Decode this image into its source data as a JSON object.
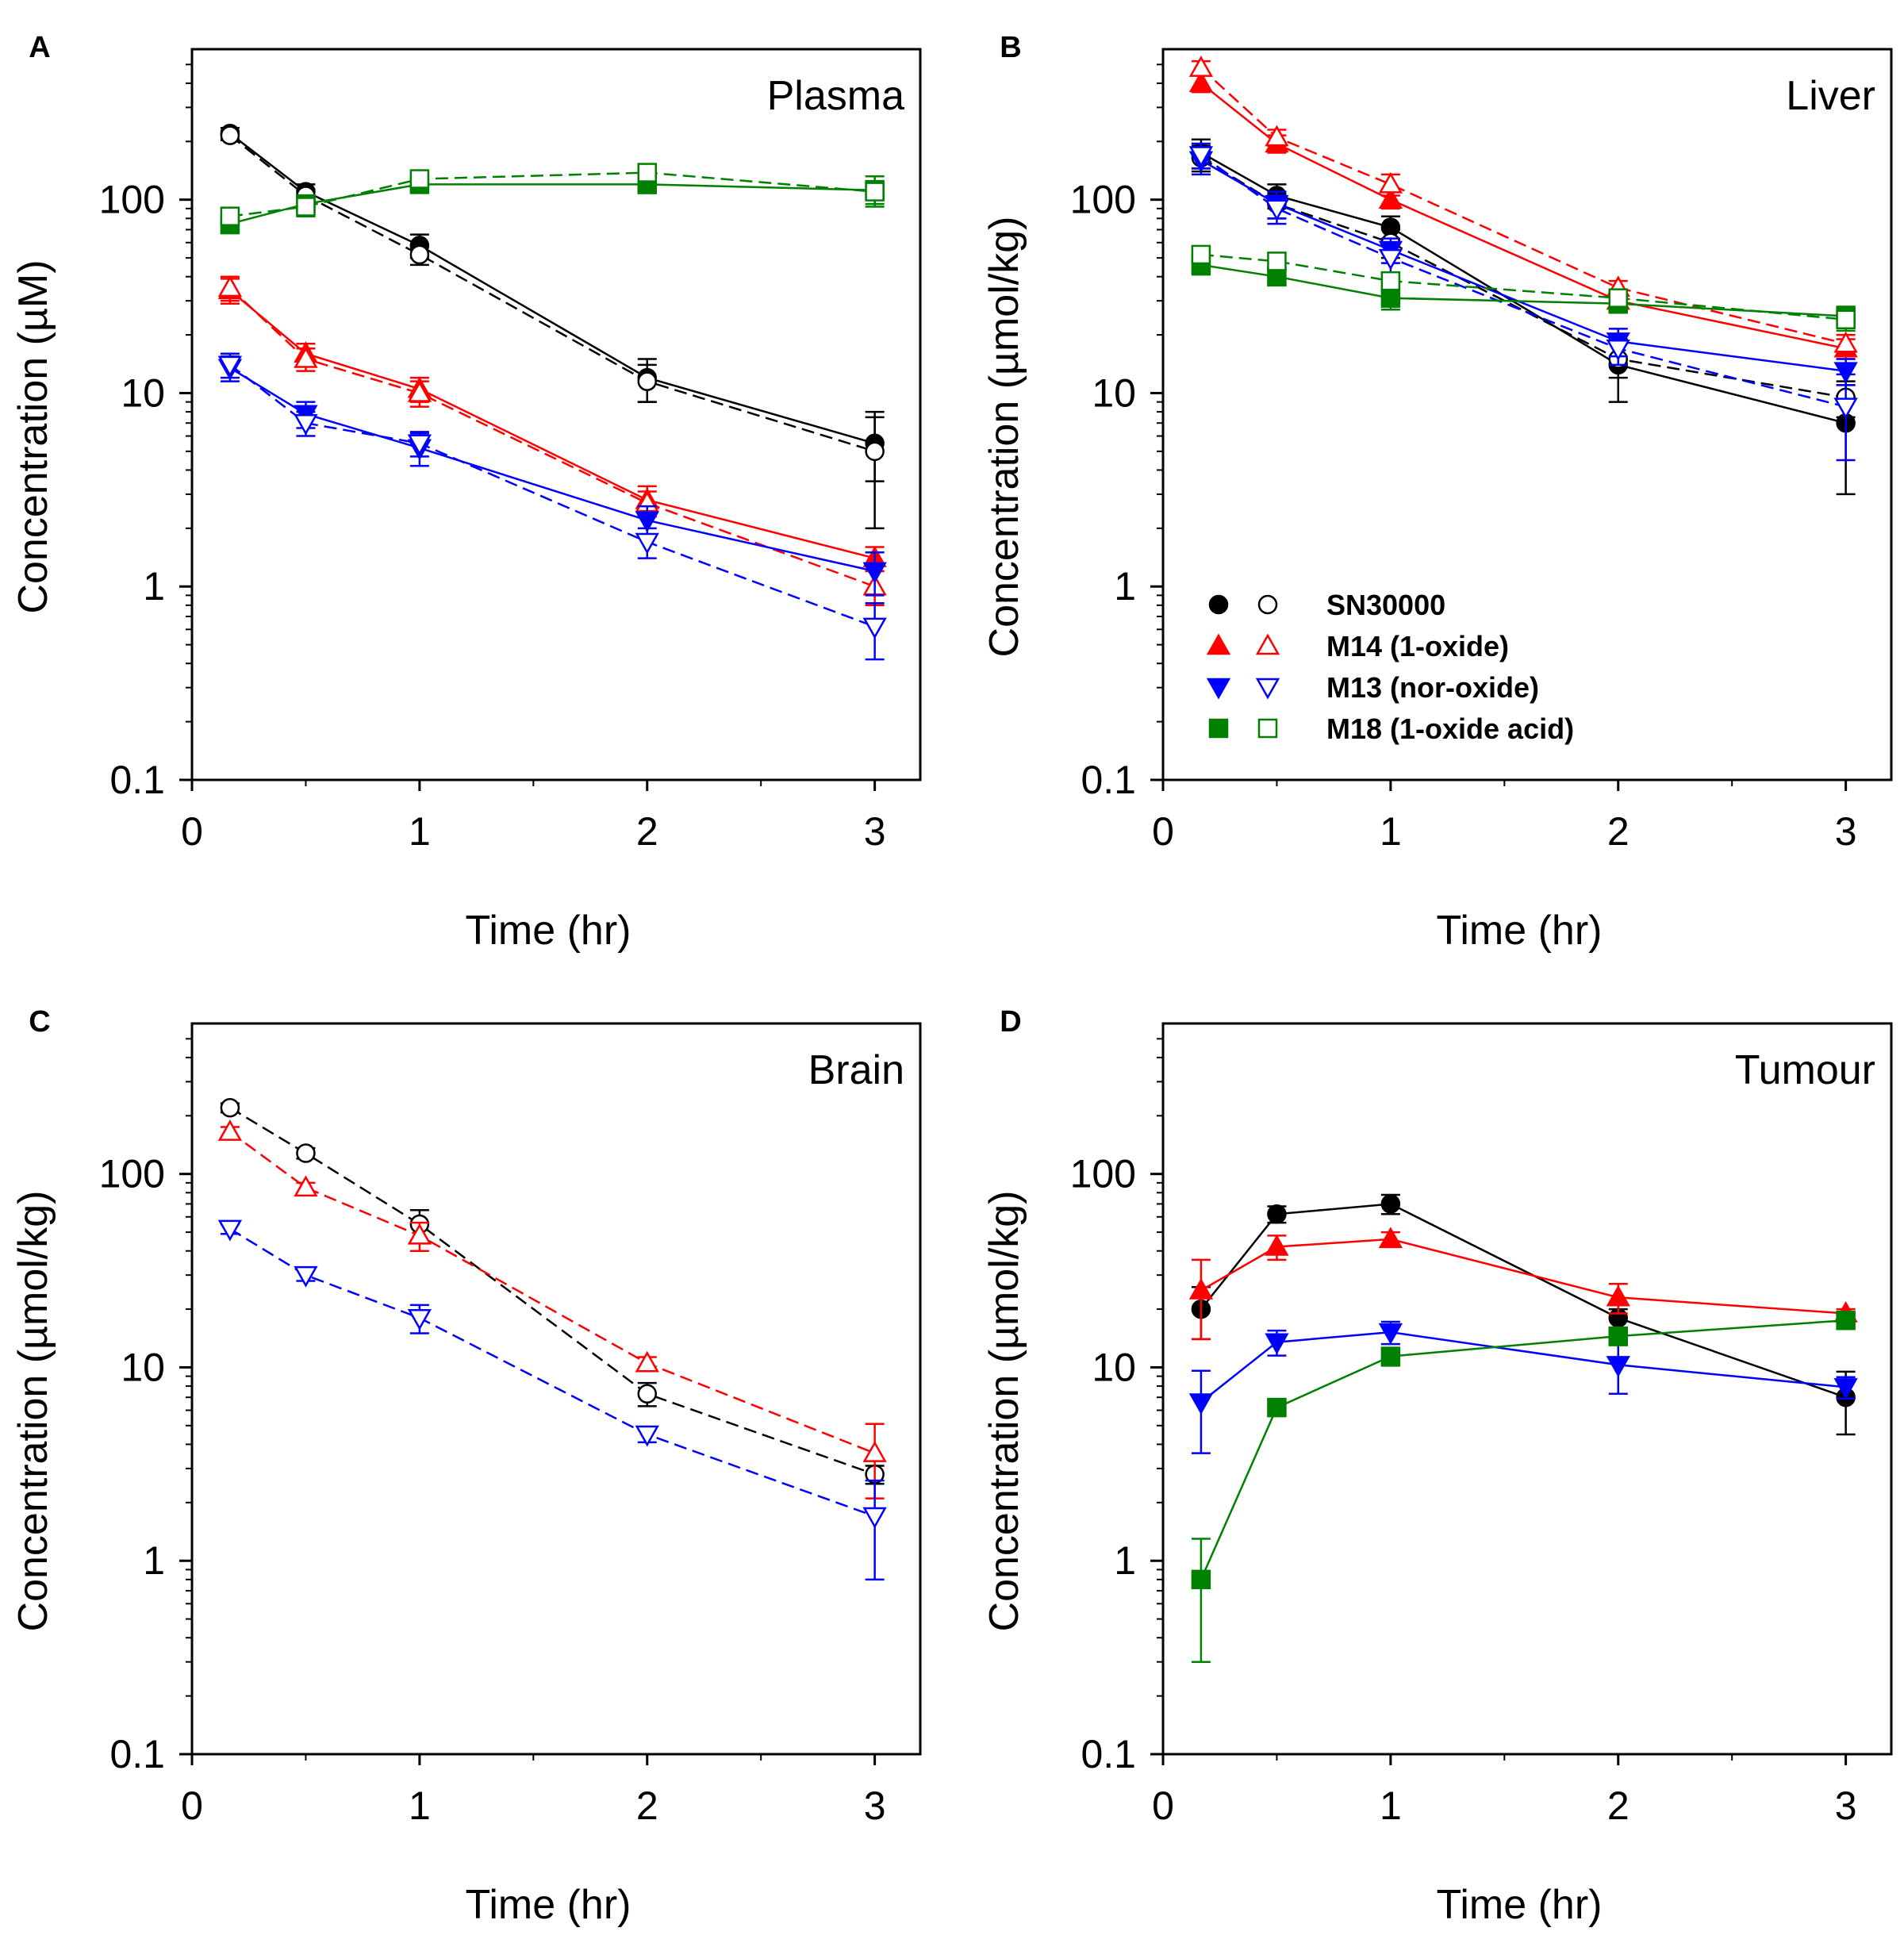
{
  "chart_data": [
    {
      "panel_label": "A",
      "title": "Plasma",
      "type": "line",
      "xlabel": "Time (hr)",
      "ylabel": "Concentration (µM)",
      "xlim": [
        0,
        3.2
      ],
      "ylim": [
        0.1,
        600
      ],
      "yscale": "log",
      "xticks": [
        "0",
        "1",
        "2",
        "3"
      ],
      "yticks": [
        "0.1",
        "1",
        "10",
        "100"
      ],
      "series": [
        {
          "name": "SN30000",
          "color": "#000000",
          "marker": "circle",
          "filled": true,
          "dashed": false,
          "x": [
            0.167,
            0.5,
            1,
            2,
            3
          ],
          "y": [
            220,
            110,
            58,
            12,
            5.5
          ],
          "err": [
            15,
            10,
            8,
            3,
            2
          ]
        },
        {
          "name": "SN30000",
          "color": "#000000",
          "marker": "circle",
          "filled": false,
          "dashed": true,
          "x": [
            0.167,
            0.5,
            1,
            2,
            3
          ],
          "y": [
            215,
            105,
            52,
            11.5,
            5.0
          ],
          "err": [
            12,
            8,
            6,
            2.5,
            3
          ]
        },
        {
          "name": "M14 (1-oxide)",
          "color": "#ff0000",
          "marker": "triangle-up",
          "filled": true,
          "dashed": false,
          "x": [
            0.167,
            0.5,
            1,
            2,
            3
          ],
          "y": [
            34,
            16,
            10.5,
            2.8,
            1.4
          ],
          "err": [
            5,
            2,
            1.5,
            0.5,
            0.2
          ]
        },
        {
          "name": "M14 (1-oxide)",
          "color": "#ff0000",
          "marker": "triangle-up",
          "filled": false,
          "dashed": true,
          "x": [
            0.167,
            0.5,
            1,
            2,
            3
          ],
          "y": [
            35,
            15,
            10,
            2.7,
            1.0
          ],
          "err": [
            5,
            2,
            1.5,
            0.4,
            0.2
          ]
        },
        {
          "name": "M13 (nor-oxide)",
          "color": "#0000ff",
          "marker": "triangle-down",
          "filled": true,
          "dashed": false,
          "x": [
            0.167,
            0.5,
            1,
            2,
            3
          ],
          "y": [
            13.5,
            7.8,
            5.2,
            2.2,
            1.2
          ],
          "err": [
            2,
            1.2,
            1,
            0.4,
            0.3
          ]
        },
        {
          "name": "M13 (nor-oxide)",
          "color": "#0000ff",
          "marker": "triangle-down",
          "filled": false,
          "dashed": true,
          "x": [
            0.167,
            0.5,
            1,
            2,
            3
          ],
          "y": [
            14,
            7,
            5.5,
            1.7,
            0.62
          ],
          "err": [
            2,
            1,
            0.8,
            0.3,
            0.2
          ]
        },
        {
          "name": "M18 (1-oxide acid)",
          "color": "#008000",
          "marker": "square",
          "filled": true,
          "dashed": false,
          "x": [
            0.167,
            0.5,
            1,
            2,
            3
          ],
          "y": [
            75,
            95,
            120,
            120,
            112
          ],
          "err": [
            8,
            10,
            10,
            12,
            20
          ]
        },
        {
          "name": "M18 (1-oxide acid)",
          "color": "#008000",
          "marker": "square",
          "filled": false,
          "dashed": true,
          "x": [
            0.167,
            0.5,
            1,
            2,
            3
          ],
          "y": [
            82,
            92,
            128,
            138,
            110
          ],
          "err": [
            8,
            10,
            10,
            12,
            15
          ]
        }
      ]
    },
    {
      "panel_label": "B",
      "title": "Liver",
      "type": "line",
      "xlabel": "Time (hr)",
      "ylabel": "Concentration (µmol/kg)",
      "xlim": [
        0,
        3.2
      ],
      "ylim": [
        0.1,
        600
      ],
      "yscale": "log",
      "xticks": [
        "0",
        "1",
        "2",
        "3"
      ],
      "yticks": [
        "0.1",
        "1",
        "10",
        "100"
      ],
      "series": [
        {
          "name": "SN30000",
          "color": "#000000",
          "marker": "circle",
          "filled": true,
          "dashed": false,
          "x": [
            0.167,
            0.5,
            1,
            2,
            3
          ],
          "y": [
            175,
            105,
            72,
            14,
            7
          ],
          "err": [
            30,
            15,
            10,
            5,
            4
          ]
        },
        {
          "name": "SN30000",
          "color": "#000000",
          "marker": "circle",
          "filled": false,
          "dashed": true,
          "x": [
            0.167,
            0.5,
            1,
            2,
            3
          ],
          "y": [
            165,
            95,
            60,
            15,
            9.5
          ],
          "err": [
            25,
            15,
            10,
            3,
            2
          ]
        },
        {
          "name": "M14 (1-oxide)",
          "color": "#ff0000",
          "marker": "triangle-up",
          "filled": true,
          "dashed": false,
          "x": [
            0.167,
            0.5,
            1,
            2,
            3
          ],
          "y": [
            400,
            195,
            100,
            30,
            17
          ],
          "err": [
            40,
            20,
            10,
            3,
            2
          ]
        },
        {
          "name": "M14 (1-oxide)",
          "color": "#ff0000",
          "marker": "triangle-up",
          "filled": false,
          "dashed": true,
          "x": [
            0.167,
            0.5,
            1,
            2,
            3
          ],
          "y": [
            480,
            210,
            120,
            35,
            18
          ],
          "err": [
            40,
            20,
            15,
            3,
            2
          ]
        },
        {
          "name": "M13 (nor-oxide)",
          "color": "#0000ff",
          "marker": "triangle-down",
          "filled": true,
          "dashed": false,
          "x": [
            0.167,
            0.5,
            1,
            2,
            3
          ],
          "y": [
            160,
            95,
            55,
            18.5,
            13
          ],
          "err": [
            25,
            15,
            8,
            3,
            2
          ]
        },
        {
          "name": "M13 (nor-oxide)",
          "color": "#0000ff",
          "marker": "triangle-down",
          "filled": false,
          "dashed": true,
          "x": [
            0.167,
            0.5,
            1,
            2,
            3
          ],
          "y": [
            170,
            90,
            50,
            17,
            8.5
          ],
          "err": [
            25,
            15,
            8,
            3,
            4
          ]
        },
        {
          "name": "M18 (1-oxide acid)",
          "color": "#008000",
          "marker": "square",
          "filled": true,
          "dashed": false,
          "x": [
            0.167,
            0.5,
            1,
            2,
            3
          ],
          "y": [
            46,
            40,
            31,
            29,
            25
          ],
          "err": [
            5,
            4,
            4,
            3,
            3
          ]
        },
        {
          "name": "M18 (1-oxide acid)",
          "color": "#008000",
          "marker": "square",
          "filled": false,
          "dashed": true,
          "x": [
            0.167,
            0.5,
            1,
            2,
            3
          ],
          "y": [
            52,
            48,
            38,
            31,
            24
          ],
          "err": [
            5,
            5,
            4,
            3,
            3
          ]
        }
      ],
      "legend": {
        "position": "lower-left",
        "entries": [
          "SN30000",
          "M14 (1-oxide)",
          "M13 (nor-oxide)",
          "M18 (1-oxide acid)"
        ]
      }
    },
    {
      "panel_label": "C",
      "title": "Brain",
      "type": "line",
      "xlabel": "Time (hr)",
      "ylabel": "Concentration (µmol/kg)",
      "xlim": [
        0,
        3.2
      ],
      "ylim": [
        0.1,
        600
      ],
      "yscale": "log",
      "xticks": [
        "0",
        "1",
        "2",
        "3"
      ],
      "yticks": [
        "0.1",
        "1",
        "10",
        "100"
      ],
      "series": [
        {
          "name": "SN30000",
          "color": "#000000",
          "marker": "circle",
          "filled": false,
          "dashed": true,
          "x": [
            0.167,
            0.5,
            1,
            2,
            3
          ],
          "y": [
            220,
            128,
            55,
            7.3,
            2.8
          ],
          "err": [
            12,
            8,
            10,
            1,
            0.3
          ]
        },
        {
          "name": "M14 (1-oxide)",
          "color": "#ff0000",
          "marker": "triangle-up",
          "filled": false,
          "dashed": true,
          "x": [
            0.167,
            0.5,
            1,
            2,
            3
          ],
          "y": [
            165,
            85,
            48,
            10.5,
            3.6
          ],
          "err": [
            10,
            5,
            8,
            0.8,
            1.5
          ]
        },
        {
          "name": "M13 (nor-oxide)",
          "color": "#0000ff",
          "marker": "triangle-down",
          "filled": false,
          "dashed": true,
          "x": [
            0.167,
            0.5,
            1,
            2,
            3
          ],
          "y": [
            52,
            30,
            18,
            4.5,
            1.7
          ],
          "err": [
            3,
            2,
            3,
            0.4,
            0.9
          ]
        }
      ]
    },
    {
      "panel_label": "D",
      "title": "Tumour",
      "type": "line",
      "xlabel": "Time (hr)",
      "ylabel": "Concentration (µmol/kg)",
      "xlim": [
        0,
        3.2
      ],
      "ylim": [
        0.1,
        600
      ],
      "yscale": "log",
      "xticks": [
        "0",
        "1",
        "2",
        "3"
      ],
      "yticks": [
        "0.1",
        "1",
        "10",
        "100"
      ],
      "series": [
        {
          "name": "SN30000",
          "color": "#000000",
          "marker": "circle",
          "filled": true,
          "dashed": false,
          "x": [
            0.167,
            0.5,
            1,
            2,
            3
          ],
          "y": [
            20,
            62,
            70,
            18,
            7
          ],
          "err": [
            6,
            6,
            8,
            2,
            2.5
          ]
        },
        {
          "name": "M14 (1-oxide)",
          "color": "#ff0000",
          "marker": "triangle-up",
          "filled": true,
          "dashed": false,
          "x": [
            0.167,
            0.5,
            1,
            2,
            3
          ],
          "y": [
            25,
            42,
            46,
            23,
            19
          ],
          "err": [
            11,
            6,
            4,
            4,
            1
          ]
        },
        {
          "name": "M13 (nor-oxide)",
          "color": "#0000ff",
          "marker": "triangle-down",
          "filled": true,
          "dashed": false,
          "x": [
            0.167,
            0.5,
            1,
            2,
            3
          ],
          "y": [
            6.6,
            13.5,
            15.2,
            10.3,
            7.9
          ],
          "err": [
            3,
            2,
            2,
            3,
            1
          ]
        },
        {
          "name": "M18 (1-oxide acid)",
          "color": "#008000",
          "marker": "square",
          "filled": true,
          "dashed": false,
          "x": [
            0.167,
            0.5,
            1,
            2,
            3
          ],
          "y": [
            0.8,
            6.2,
            11.4,
            14.5,
            17.5
          ],
          "err": [
            0.5,
            0.6,
            1.2,
            1.5,
            1.5
          ]
        }
      ]
    }
  ]
}
